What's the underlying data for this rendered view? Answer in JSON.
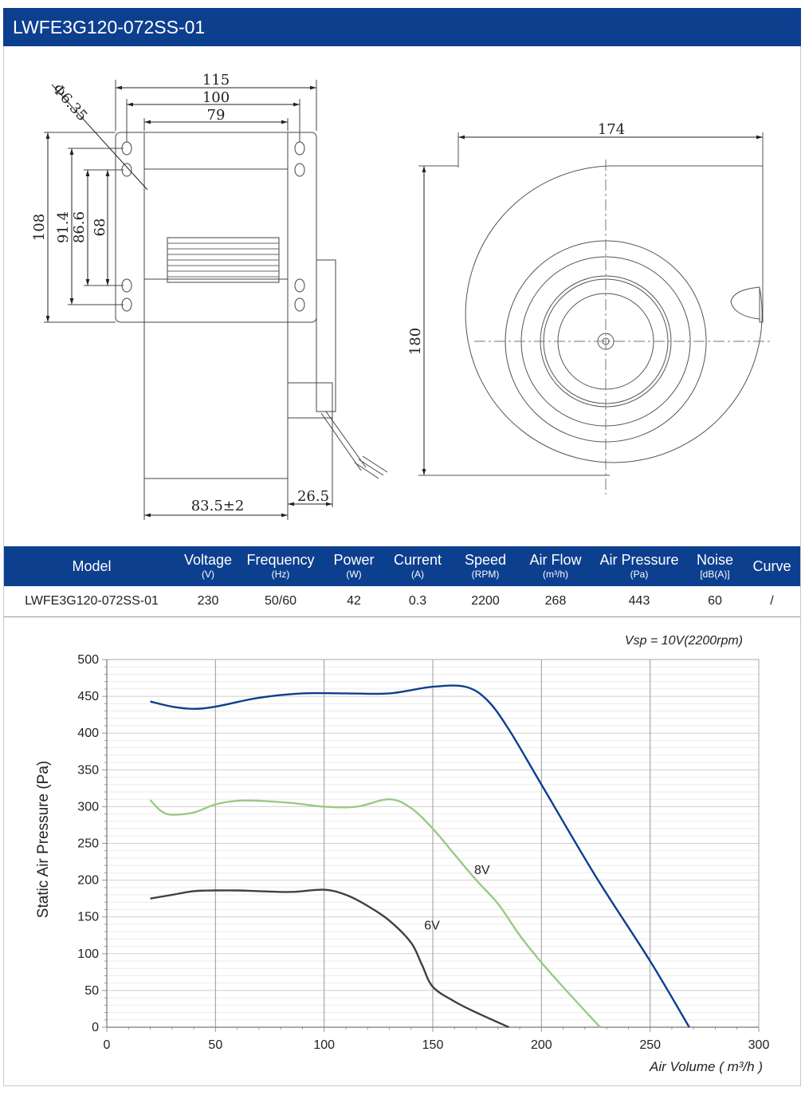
{
  "header": {
    "title": "LWFE3G120-072SS-01"
  },
  "drawing": {
    "dims": {
      "d115": "115",
      "d100": "100",
      "d79": "79",
      "phi": "Φ6.35",
      "d108": "108",
      "d91_4": "91.4",
      "d86_6": "86.6",
      "d68": "68",
      "d83_5": "83.5±2",
      "d26_5": "26.5",
      "d174": "174",
      "d180": "180"
    }
  },
  "table": {
    "columns": [
      {
        "label": "Model",
        "unit": ""
      },
      {
        "label": "Voltage",
        "unit": "(V)"
      },
      {
        "label": "Frequency",
        "unit": "(Hz)"
      },
      {
        "label": "Power",
        "unit": "(W)"
      },
      {
        "label": "Current",
        "unit": "(A)"
      },
      {
        "label": "Speed",
        "unit": "(RPM)"
      },
      {
        "label": "Air Flow",
        "unit": "(m³/h)"
      },
      {
        "label": "Air Pressure",
        "unit": "(Pa)"
      },
      {
        "label": "Noise",
        "unit": "[dB(A)]"
      },
      {
        "label": "Curve",
        "unit": ""
      }
    ],
    "row": [
      "LWFE3G120-072SS-01",
      "230",
      "50/60",
      "42",
      "0.3",
      "2200",
      "268",
      "443",
      "60",
      "/"
    ]
  },
  "chart_data": {
    "type": "line",
    "annotation": "Vsp = 10V(2200rpm)",
    "xlabel": "Air Volume ( m³/h )",
    "ylabel": "Static Air Pressure  (Pa)",
    "xlim": [
      0,
      300
    ],
    "ylim": [
      0,
      500
    ],
    "xticks": [
      0,
      50,
      100,
      150,
      200,
      250,
      300
    ],
    "yticks": [
      0,
      50,
      100,
      150,
      200,
      250,
      300,
      350,
      400,
      450,
      500
    ],
    "grid": true,
    "series": [
      {
        "label": "",
        "color": "#0d3f8f",
        "x": [
          20,
          30,
          40,
          50,
          70,
          90,
          110,
          130,
          150,
          165,
          175,
          185,
          200,
          225,
          250,
          268
        ],
        "y": [
          443,
          436,
          433,
          436,
          448,
          454,
          454,
          454,
          463,
          463,
          445,
          405,
          330,
          205,
          90,
          0
        ]
      },
      {
        "label": "8V",
        "color": "#9bc985",
        "x": [
          20,
          25,
          30,
          40,
          50,
          60,
          70,
          85,
          100,
          115,
          130,
          140,
          150,
          160,
          170,
          180,
          190,
          200,
          212,
          227
        ],
        "y": [
          309,
          294,
          289,
          292,
          303,
          308,
          308,
          305,
          300,
          300,
          310,
          298,
          270,
          235,
          200,
          168,
          125,
          88,
          48,
          0
        ]
      },
      {
        "label": "6V",
        "color": "#404040",
        "x": [
          20,
          30,
          40,
          50,
          60,
          70,
          85,
          100,
          110,
          120,
          130,
          140,
          145,
          150,
          160,
          170,
          185
        ],
        "y": [
          175,
          180,
          185,
          186,
          186,
          185,
          184,
          187,
          180,
          165,
          145,
          115,
          85,
          55,
          35,
          20,
          0
        ]
      }
    ]
  }
}
